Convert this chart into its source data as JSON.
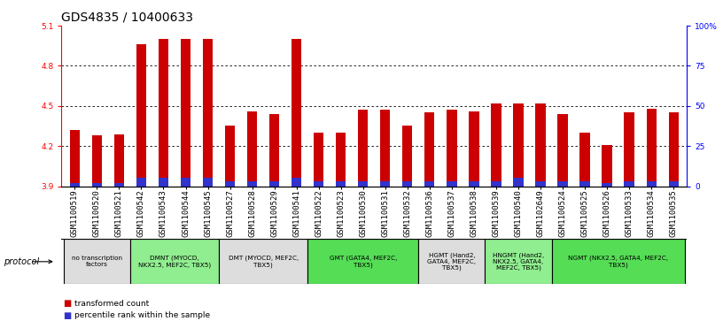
{
  "title": "GDS4835 / 10400633",
  "samples": [
    "GSM1100519",
    "GSM1100520",
    "GSM1100521",
    "GSM1100542",
    "GSM1100543",
    "GSM1100544",
    "GSM1100545",
    "GSM1100527",
    "GSM1100528",
    "GSM1100529",
    "GSM1100541",
    "GSM1100522",
    "GSM1100523",
    "GSM1100530",
    "GSM1100531",
    "GSM1100532",
    "GSM1100536",
    "GSM1100537",
    "GSM1100538",
    "GSM1100539",
    "GSM1100540",
    "GSM1102649",
    "GSM1100524",
    "GSM1100525",
    "GSM1100526",
    "GSM1100533",
    "GSM1100534",
    "GSM1100535"
  ],
  "transformed_count": [
    4.32,
    4.28,
    4.29,
    4.96,
    5.0,
    5.0,
    5.0,
    4.35,
    4.46,
    4.44,
    5.0,
    4.3,
    4.3,
    4.47,
    4.47,
    4.35,
    4.45,
    4.47,
    4.46,
    4.52,
    4.52,
    4.52,
    4.44,
    4.3,
    4.21,
    4.45,
    4.48,
    4.45
  ],
  "percentile_rank": [
    2,
    2,
    2,
    5,
    5,
    5,
    5,
    3,
    3,
    3,
    5,
    3,
    3,
    3,
    3,
    3,
    3,
    3,
    3,
    3,
    5,
    3,
    3,
    3,
    2,
    3,
    3,
    3
  ],
  "protocol_groups": [
    {
      "label": "no transcription\nfactors",
      "start": 0,
      "end": 3,
      "color": "#dddddd"
    },
    {
      "label": "DMNT (MYOCD,\nNKX2.5, MEF2C, TBX5)",
      "start": 3,
      "end": 7,
      "color": "#90ee90"
    },
    {
      "label": "DMT (MYOCD, MEF2C,\nTBX5)",
      "start": 7,
      "end": 11,
      "color": "#dddddd"
    },
    {
      "label": "GMT (GATA4, MEF2C,\nTBX5)",
      "start": 11,
      "end": 16,
      "color": "#55dd55"
    },
    {
      "label": "HGMT (Hand2,\nGATA4, MEF2C,\nTBX5)",
      "start": 16,
      "end": 19,
      "color": "#dddddd"
    },
    {
      "label": "HNGMT (Hand2,\nNKX2.5, GATA4,\nMEF2C, TBX5)",
      "start": 19,
      "end": 22,
      "color": "#90ee90"
    },
    {
      "label": "NGMT (NKX2.5, GATA4, MEF2C,\nTBX5)",
      "start": 22,
      "end": 28,
      "color": "#55dd55"
    }
  ],
  "ylim": [
    3.9,
    5.1
  ],
  "yticks_left": [
    3.9,
    4.2,
    4.5,
    4.8,
    5.1
  ],
  "right_yticks": [
    0,
    25,
    50,
    75,
    100
  ],
  "bar_color": "#cc0000",
  "percentile_color": "#3333cc",
  "bg_color": "#ffffff",
  "title_fontsize": 10,
  "tick_fontsize": 6.5,
  "bar_width": 0.45,
  "protocol_label": "protocol"
}
